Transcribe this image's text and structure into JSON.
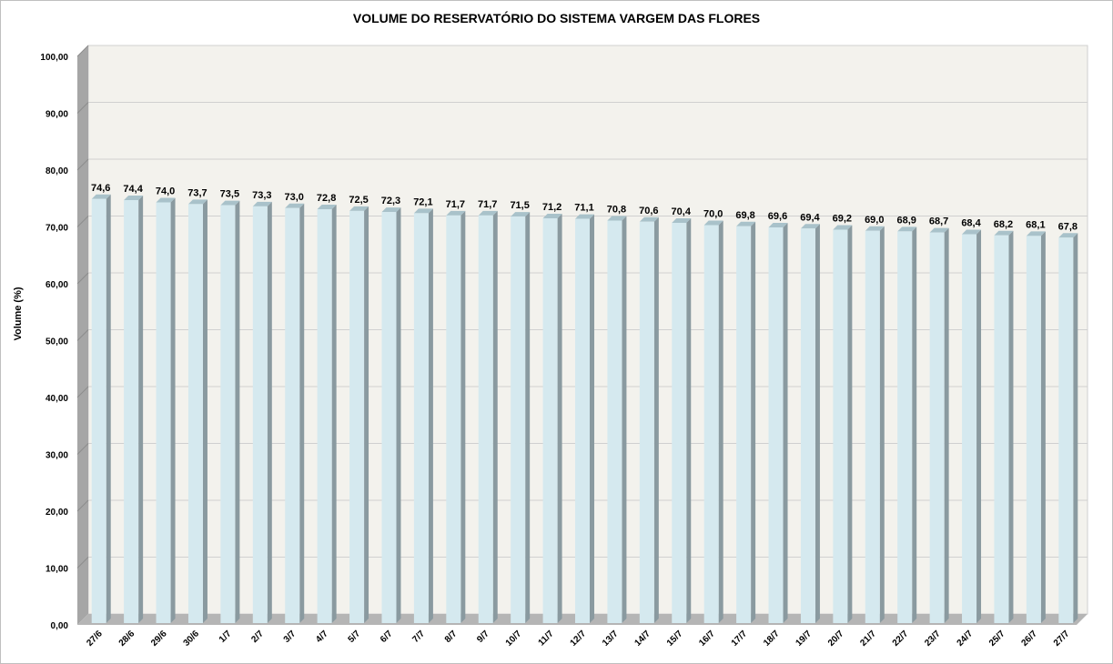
{
  "chart_data": {
    "type": "bar",
    "title": "VOLUME DO RESERVATÓRIO DO SISTEMA VARGEM DAS FLORES",
    "xlabel": "",
    "ylabel": "Volume (%)",
    "ylim": [
      0,
      100
    ],
    "yticks": [
      "0,00",
      "10,00",
      "20,00",
      "30,00",
      "40,00",
      "50,00",
      "60,00",
      "70,00",
      "80,00",
      "90,00",
      "100,00"
    ],
    "grid": true,
    "three_d": true,
    "categories": [
      "27/6",
      "28/6",
      "29/6",
      "30/6",
      "1/7",
      "2/7",
      "3/7",
      "4/7",
      "5/7",
      "6/7",
      "7/7",
      "8/7",
      "9/7",
      "10/7",
      "11/7",
      "12/7",
      "13/7",
      "14/7",
      "15/7",
      "16/7",
      "17/7",
      "18/7",
      "19/7",
      "20/7",
      "21/7",
      "22/7",
      "23/7",
      "24/7",
      "25/7",
      "26/7",
      "27/7"
    ],
    "values": [
      74.6,
      74.4,
      74.0,
      73.7,
      73.5,
      73.3,
      73.0,
      72.8,
      72.5,
      72.3,
      72.1,
      71.7,
      71.7,
      71.5,
      71.2,
      71.1,
      70.8,
      70.6,
      70.4,
      70.0,
      69.8,
      69.6,
      69.4,
      69.2,
      69.0,
      68.9,
      68.7,
      68.4,
      68.2,
      68.1,
      67.8
    ],
    "data_labels": [
      "74,6",
      "74,4",
      "74,0",
      "73,7",
      "73,5",
      "73,3",
      "73,0",
      "72,8",
      "72,5",
      "72,3",
      "72,1",
      "71,7",
      "71,7",
      "71,5",
      "71,2",
      "71,1",
      "70,8",
      "70,6",
      "70,4",
      "70,0",
      "69,8",
      "69,6",
      "69,4",
      "69,2",
      "69,0",
      "68,9",
      "68,7",
      "68,4",
      "68,2",
      "68,1",
      "67,8"
    ],
    "colors": {
      "bar_front": "#d5e9ef",
      "bar_side": "#8a9aa0",
      "bar_top": "#a9c2ca",
      "plot_back": "#f3f2ed",
      "wall_side": "#a6a6a6",
      "floor": "#b5b5b5",
      "gridline": "#d0d0d0"
    }
  }
}
